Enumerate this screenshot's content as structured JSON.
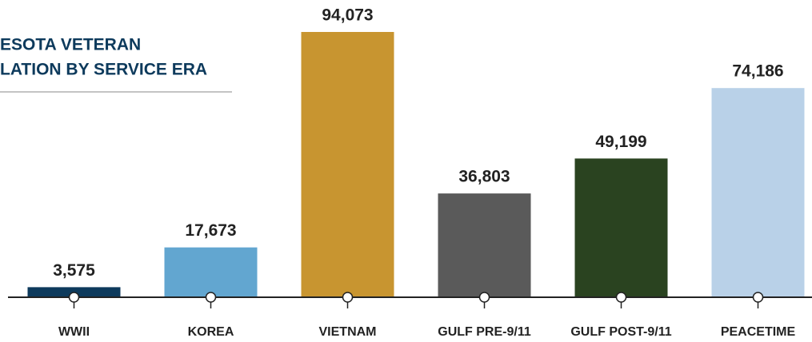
{
  "chart_data": {
    "type": "bar",
    "title": [
      "ESOTA VETERAN",
      "LATION BY SERVICE ERA"
    ],
    "categories": [
      "WWII",
      "KOREA",
      "VIETNAM",
      "GULF PRE-9/11",
      "GULF POST-9/11",
      "PEACETIME"
    ],
    "values": [
      3575,
      17673,
      94073,
      36803,
      49199,
      74186
    ],
    "value_labels": [
      "3,575",
      "17,673",
      "94,073",
      "36,803",
      "49,199",
      "74,186"
    ],
    "colors": [
      "#0d3a5c",
      "#62a6d0",
      "#c89530",
      "#5a5a5a",
      "#2a4320",
      "#b9d1e8"
    ]
  }
}
